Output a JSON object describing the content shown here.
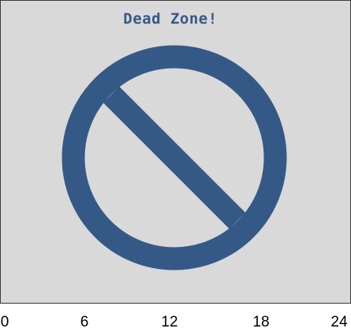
{
  "banner": {
    "title": "Dead Zone!"
  },
  "colors": {
    "panel_background": "#d9d9d9",
    "symbol": "#355987",
    "title": "#355987"
  },
  "icon": "no-entry-icon",
  "axis": {
    "ticks": [
      "0",
      "6",
      "12",
      "18",
      "24"
    ]
  }
}
